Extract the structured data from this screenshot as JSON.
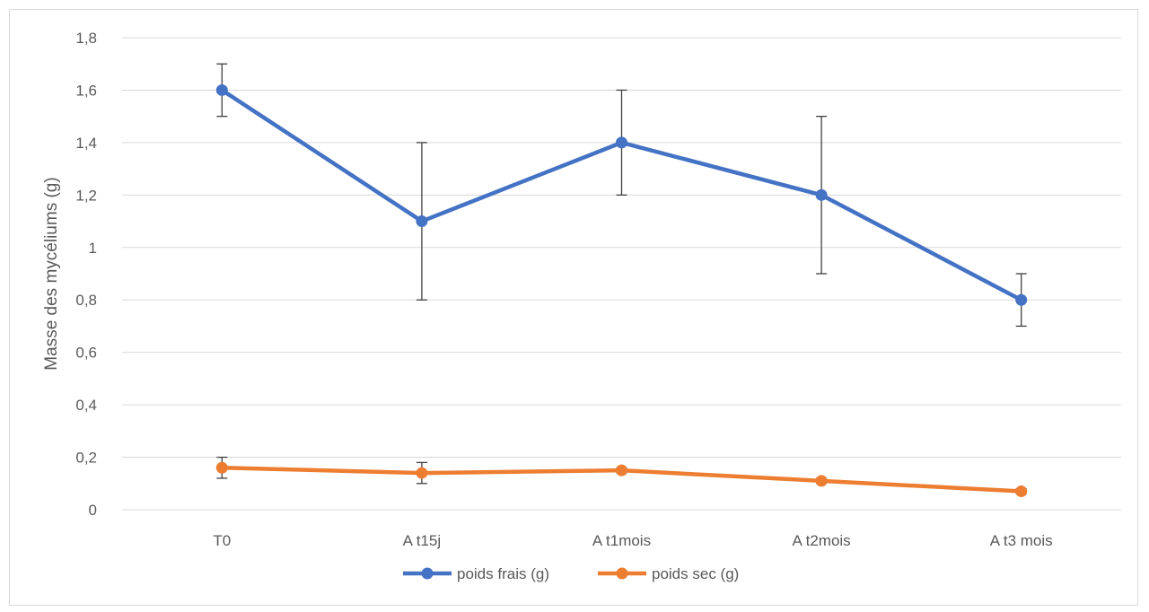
{
  "chart_data": {
    "type": "line",
    "title": "",
    "xlabel": "",
    "ylabel": "Masse des mycéliums (g)",
    "categories": [
      "T0",
      "A t15j",
      "A t1mois",
      "A t2mois",
      "A t3 mois"
    ],
    "ylim": [
      0,
      1.8
    ],
    "yticks": [
      "0",
      "0,2",
      "0,4",
      "0,6",
      "0,8",
      "1",
      "1,2",
      "1,4",
      "1,6",
      "1,8"
    ],
    "grid": true,
    "legend_position": "bottom",
    "series": [
      {
        "name": "poids frais (g)",
        "color": "#4472C4",
        "values": [
          1.6,
          1.1,
          1.4,
          1.2,
          0.8
        ],
        "error": [
          0.1,
          0.3,
          0.2,
          0.3,
          0.1
        ]
      },
      {
        "name": "poids sec (g)",
        "color": "#ED7D31",
        "values": [
          0.16,
          0.14,
          0.15,
          0.11,
          0.07
        ],
        "error": [
          0.04,
          0.04,
          0.01,
          0.01,
          0.01
        ]
      }
    ]
  }
}
